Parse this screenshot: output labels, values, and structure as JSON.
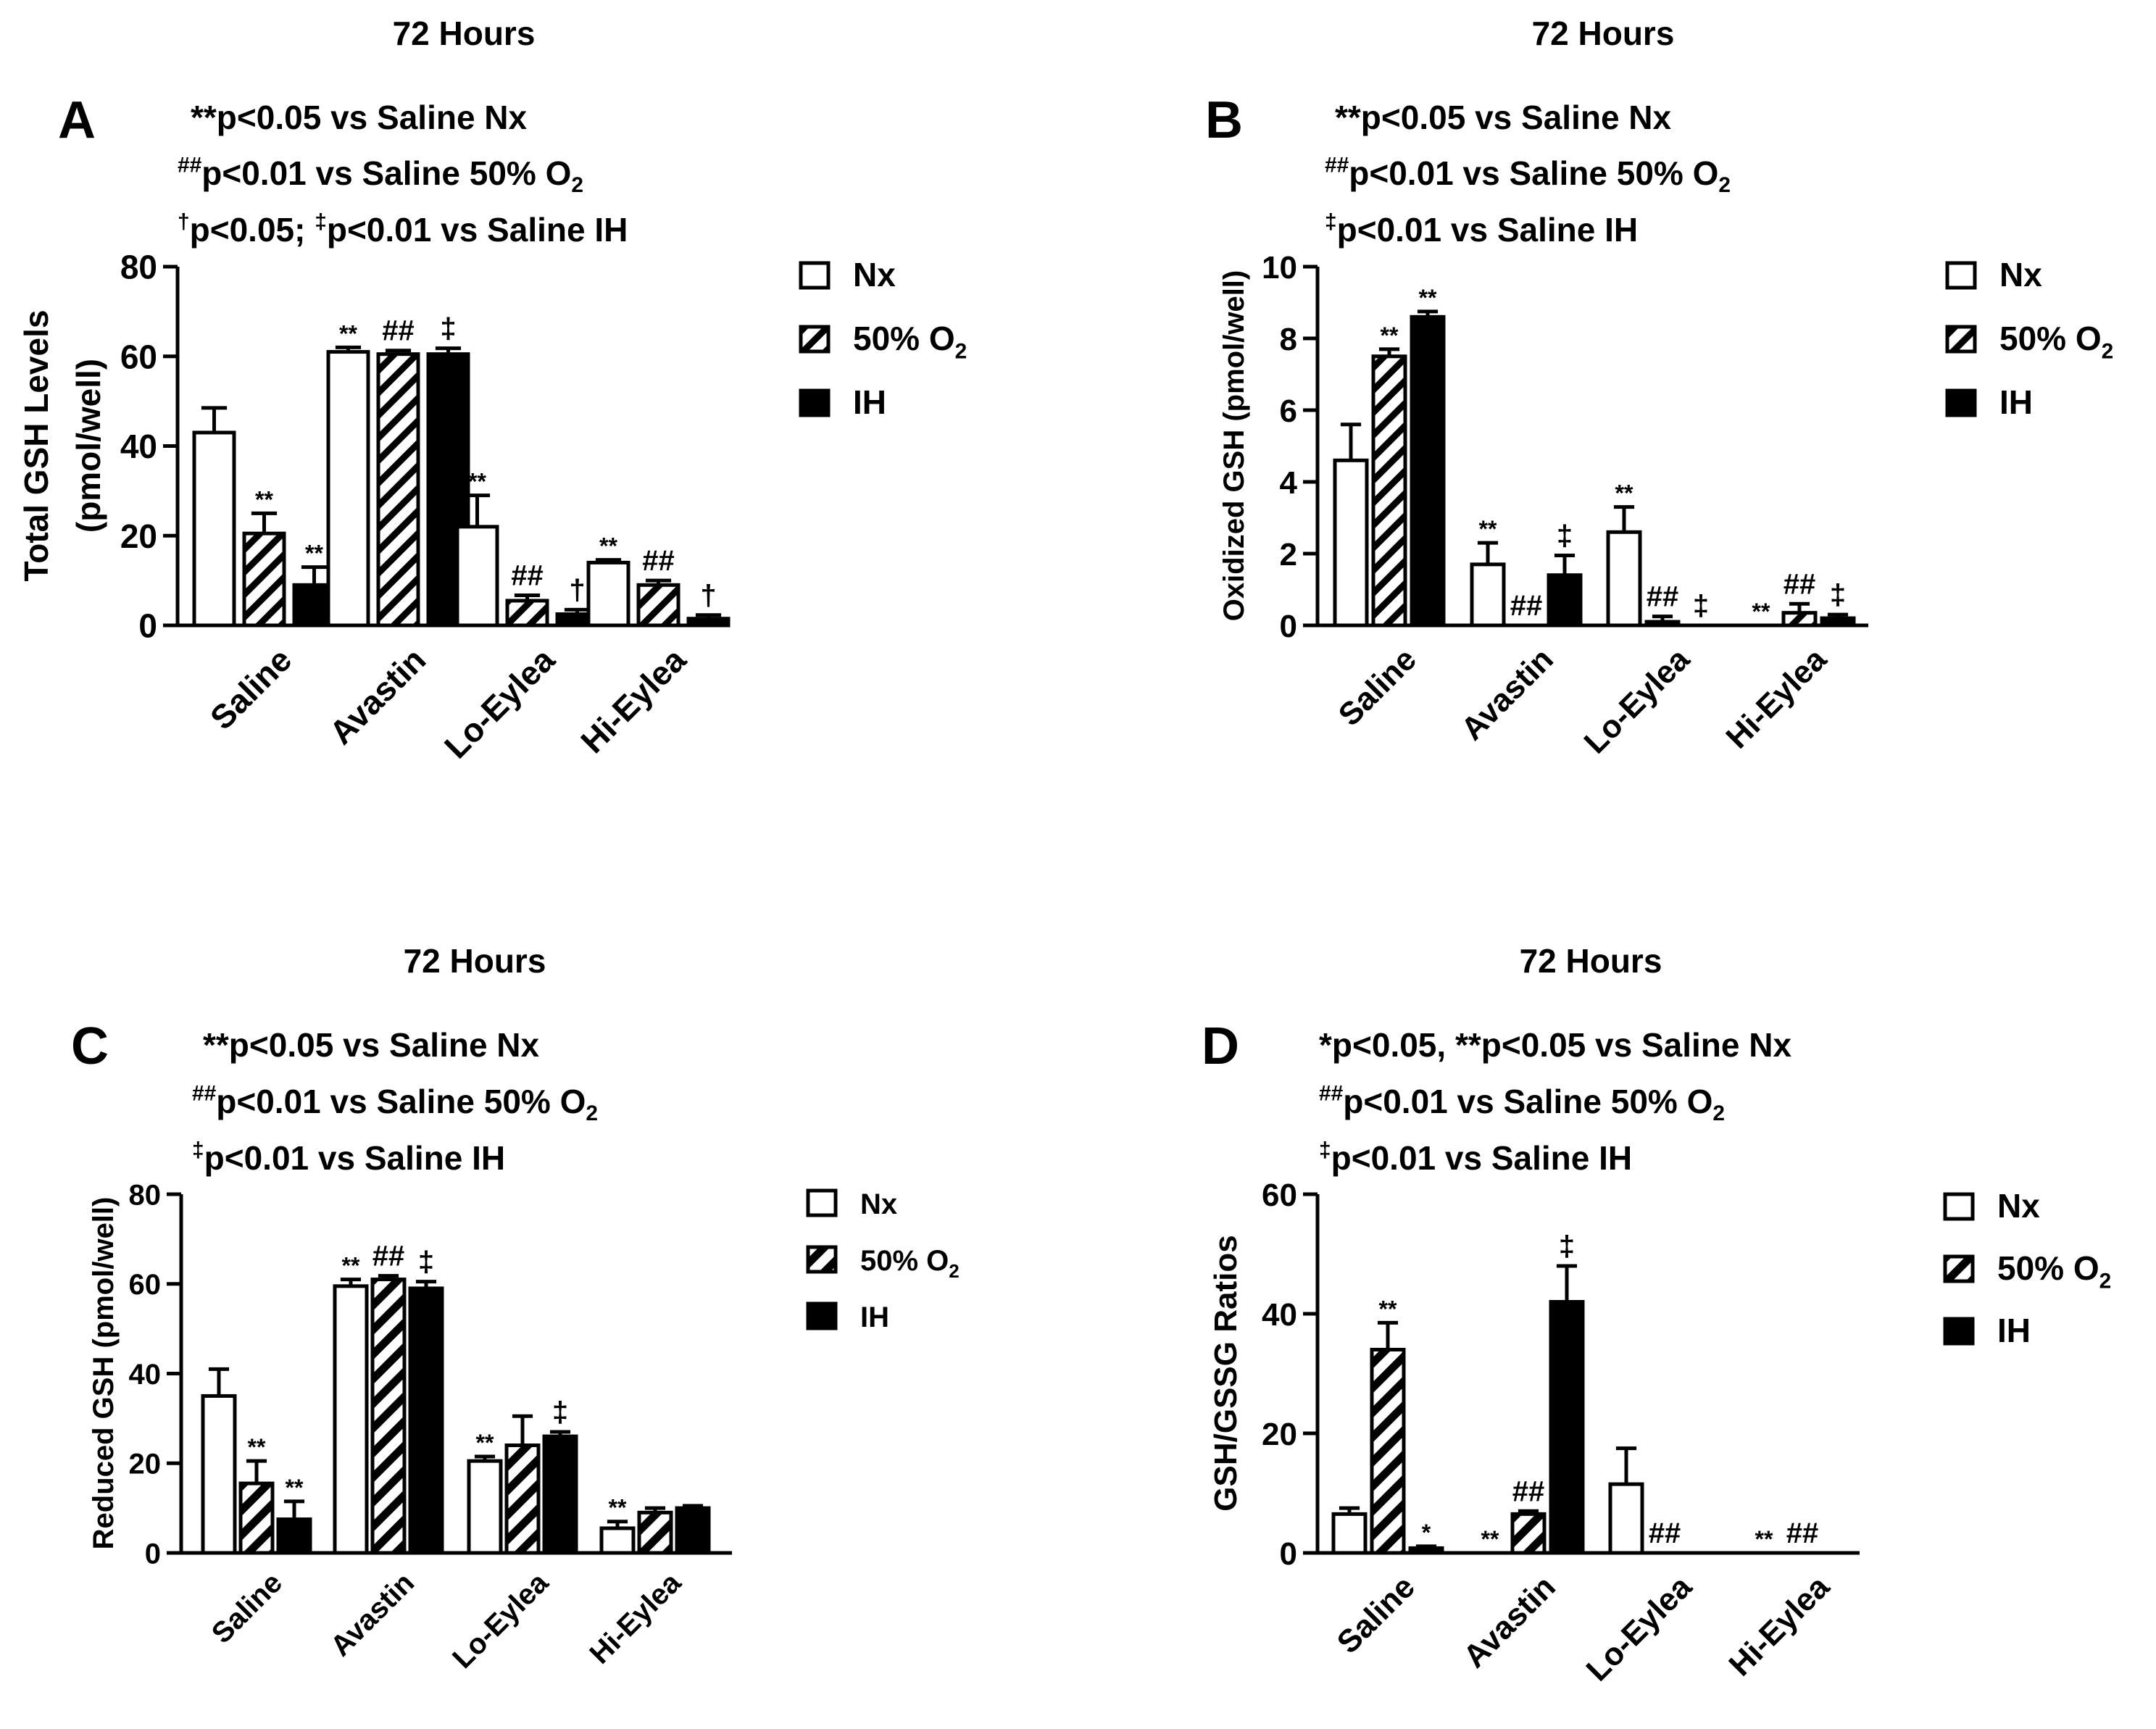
{
  "chart_data": [
    {
      "type": "bar",
      "panel_letter": "A",
      "title": "72 Hours",
      "annotation_lines": [
        {
          "sup": "",
          "parts": [
            {
              "t": "**p<0.05 vs Saline Nx"
            }
          ]
        },
        {
          "sup": "##",
          "parts": [
            {
              "t": "p<0.01 vs Saline 50% O"
            },
            {
              "t": "2",
              "sub": true
            }
          ]
        },
        {
          "sup": "†",
          "parts": [
            {
              "t": "p<0.05; "
            },
            {
              "t": "‡",
              "sup": true
            },
            {
              "t": "p<0.01 vs Saline IH"
            }
          ]
        }
      ],
      "ylabel": [
        "Total GSH Levels",
        "(pmol/well)"
      ],
      "ylim": [
        0,
        80
      ],
      "yticks": [
        0,
        20,
        40,
        60,
        80
      ],
      "categories": [
        "Saline",
        "Avastin",
        "Lo-Eylea",
        "Hi-Eylea"
      ],
      "series": [
        {
          "name": "Nx",
          "pattern": "open",
          "values": [
            43,
            61,
            22,
            14
          ],
          "errors": [
            5.5,
            1,
            7,
            0.6
          ],
          "marks": [
            "",
            "**",
            "**",
            "**"
          ]
        },
        {
          "name": "50% O",
          "name_sub": "2",
          "pattern": "hatch",
          "values": [
            20.5,
            60.5,
            5.5,
            9
          ],
          "errors": [
            4.5,
            0.8,
            1.2,
            1
          ],
          "marks": [
            "**",
            "##",
            "##",
            "##"
          ]
        },
        {
          "name": "IH",
          "pattern": "solid",
          "values": [
            9,
            60.5,
            2.5,
            1.5
          ],
          "errors": [
            4,
            1.3,
            1,
            0.8
          ],
          "marks": [
            "**",
            "‡",
            "†",
            "†"
          ]
        }
      ],
      "legend_position": "right"
    },
    {
      "type": "bar",
      "panel_letter": "B",
      "title": "72 Hours",
      "annotation_lines": [
        {
          "sup": "",
          "parts": [
            {
              "t": "**p<0.05 vs Saline Nx"
            }
          ]
        },
        {
          "sup": "##",
          "parts": [
            {
              "t": "p<0.01 vs Saline 50% O"
            },
            {
              "t": "2",
              "sub": true
            }
          ]
        },
        {
          "sup": "‡",
          "parts": [
            {
              "t": "p<0.01 vs Saline IH"
            }
          ]
        }
      ],
      "ylabel": [
        "Oxidized GSH  (pmol/well)"
      ],
      "ylim": [
        0,
        10
      ],
      "yticks": [
        0,
        2,
        4,
        6,
        8,
        10
      ],
      "categories": [
        "Saline",
        "Avastin",
        "Lo-Eylea",
        "Hi-Eylea"
      ],
      "series": [
        {
          "name": "Nx",
          "pattern": "open",
          "values": [
            4.6,
            1.7,
            2.6,
            0
          ],
          "errors": [
            1,
            0.6,
            0.7,
            0
          ],
          "marks": [
            "",
            "**",
            "**",
            "**"
          ]
        },
        {
          "name": "50% O",
          "name_sub": "2",
          "pattern": "hatch",
          "values": [
            7.5,
            0,
            0.1,
            0.35
          ],
          "errors": [
            0.2,
            0,
            0.15,
            0.25
          ],
          "marks": [
            "**",
            "##",
            "##",
            "##"
          ]
        },
        {
          "name": "IH",
          "pattern": "solid",
          "values": [
            8.6,
            1.4,
            0,
            0.2
          ],
          "errors": [
            0.15,
            0.55,
            0,
            0.1
          ],
          "marks": [
            "**",
            "‡",
            "‡",
            "‡"
          ]
        }
      ],
      "legend_position": "right"
    },
    {
      "type": "bar",
      "panel_letter": "C",
      "title": "72 Hours",
      "annotation_lines": [
        {
          "sup": "",
          "parts": [
            {
              "t": "**p<0.05 vs Saline Nx"
            }
          ]
        },
        {
          "sup": "##",
          "parts": [
            {
              "t": "p<0.01 vs Saline 50% O"
            },
            {
              "t": "2",
              "sub": true
            }
          ]
        },
        {
          "sup": "‡",
          "parts": [
            {
              "t": "p<0.01 vs Saline IH"
            }
          ]
        }
      ],
      "ylabel": [
        "Reduced GSH (pmol/well)"
      ],
      "ylim": [
        0,
        80
      ],
      "yticks": [
        0,
        20,
        40,
        60,
        80
      ],
      "categories": [
        "Saline",
        "Avastin",
        "Lo-Eylea",
        "Hi-Eylea"
      ],
      "series": [
        {
          "name": "Nx",
          "pattern": "open",
          "values": [
            35,
            59.5,
            20.5,
            5.5
          ],
          "errors": [
            6,
            1.5,
            1,
            1.5
          ],
          "marks": [
            "",
            "**",
            "**",
            "**"
          ]
        },
        {
          "name": "50% O",
          "name_sub": "2",
          "pattern": "hatch2",
          "values": [
            15.5,
            61,
            24,
            9
          ],
          "errors": [
            5,
            0.8,
            6.5,
            1
          ],
          "marks": [
            "**",
            "##",
            "",
            ""
          ]
        },
        {
          "name": "IH",
          "pattern": "solid",
          "values": [
            7.5,
            59,
            26,
            10
          ],
          "errors": [
            4,
            1.5,
            1,
            0.5
          ],
          "marks": [
            "**",
            "‡",
            "‡",
            ""
          ]
        }
      ],
      "legend_position": "right"
    },
    {
      "type": "bar",
      "panel_letter": "D",
      "title": "72 Hours",
      "annotation_lines": [
        {
          "sup": "",
          "parts": [
            {
              "t": "*p<0.05, **p<0.05 vs Saline Nx"
            }
          ]
        },
        {
          "sup": "##",
          "parts": [
            {
              "t": "p<0.01 vs Saline 50% O"
            },
            {
              "t": "2",
              "sub": true
            }
          ]
        },
        {
          "sup": "‡",
          "parts": [
            {
              "t": "p<0.01 vs Saline IH"
            }
          ]
        }
      ],
      "ylabel": [
        "GSH/GSSG Ratios"
      ],
      "ylim": [
        0,
        60
      ],
      "yticks": [
        0,
        20,
        40,
        60
      ],
      "categories": [
        "Saline",
        "Avastin",
        "Lo-Eylea",
        "Hi-Eylea"
      ],
      "series": [
        {
          "name": "Nx",
          "pattern": "open",
          "values": [
            6.5,
            0,
            11.5,
            0
          ],
          "errors": [
            1,
            0,
            6,
            0
          ],
          "marks": [
            "",
            "**",
            "",
            "**"
          ]
        },
        {
          "name": "50% O",
          "name_sub": "2",
          "pattern": "hatch2",
          "values": [
            34,
            6.5,
            0,
            0
          ],
          "errors": [
            4.5,
            0.5,
            0,
            0
          ],
          "marks": [
            "**",
            "##",
            "##",
            "##"
          ]
        },
        {
          "name": "IH",
          "pattern": "solid",
          "values": [
            0.8,
            42,
            0,
            0
          ],
          "errors": [
            0.3,
            6,
            0,
            0
          ],
          "marks": [
            "*",
            "‡",
            "",
            ""
          ]
        }
      ],
      "legend_position": "right"
    }
  ]
}
